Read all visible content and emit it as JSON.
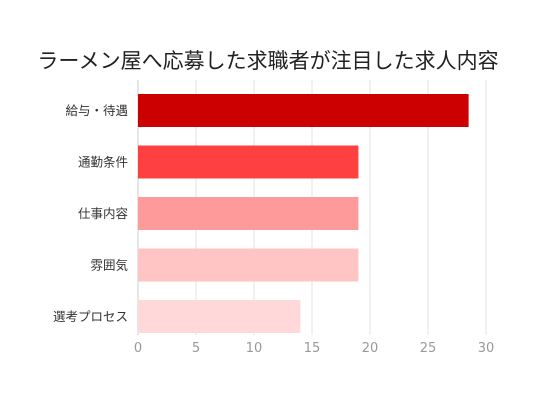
{
  "chart_data": {
    "type": "bar",
    "orientation": "horizontal",
    "title": "ラーメン屋へ応募した求職者が注目した求人内容",
    "categories": [
      "給与・待遇",
      "通勤条件",
      "仕事内容",
      "雰囲気",
      "選考プロセス"
    ],
    "values": [
      28.5,
      19,
      19,
      19,
      14
    ],
    "colors": [
      "#cc0000",
      "#ff4040",
      "#ff9a9a",
      "#ffc4c4",
      "#ffd9d9"
    ],
    "xlim": [
      0,
      30
    ],
    "xticks": [
      0,
      5,
      10,
      15,
      20,
      25,
      30
    ],
    "grid": true,
    "legend": "none",
    "xlabel": "",
    "ylabel": ""
  }
}
